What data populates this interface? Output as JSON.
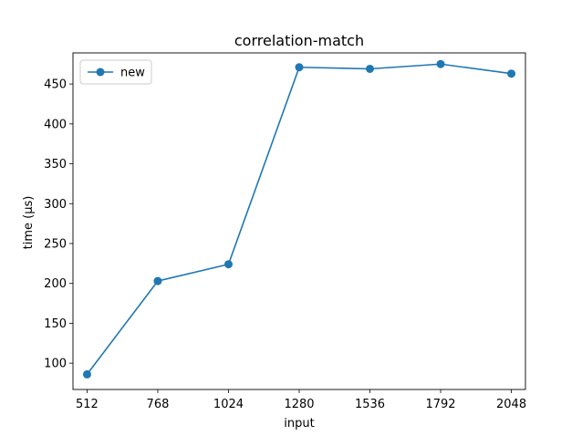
{
  "chart_data": {
    "type": "line",
    "title": "correlation-match",
    "xlabel": "input",
    "ylabel": "time (µs)",
    "x": [
      512,
      768,
      1024,
      1280,
      1536,
      1792,
      2048
    ],
    "xticks": [
      "512",
      "768",
      "1024",
      "1280",
      "1536",
      "1792",
      "2048"
    ],
    "xlim": [
      461,
      2099
    ],
    "yticks": [
      100,
      150,
      200,
      250,
      300,
      350,
      400,
      450
    ],
    "ylim": [
      67,
      489
    ],
    "grid": false,
    "legend_position": "top-left",
    "series": [
      {
        "name": "new",
        "color": "#1f77b4",
        "marker": "circle",
        "values": [
          86,
          203,
          224,
          471,
          469,
          475,
          463
        ]
      }
    ]
  }
}
